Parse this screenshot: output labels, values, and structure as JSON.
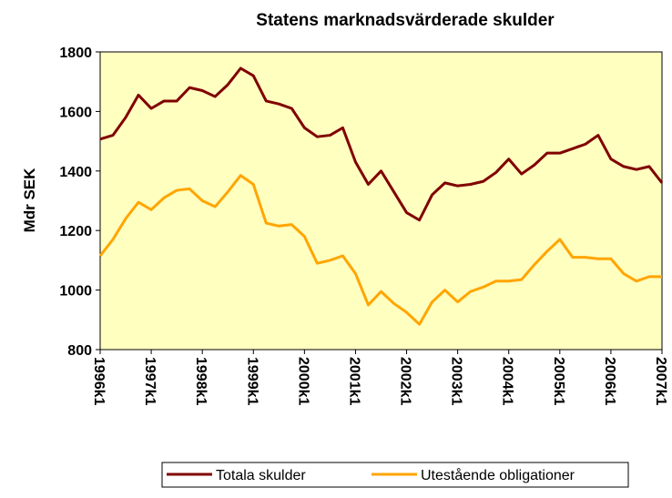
{
  "chart_data": {
    "type": "line",
    "title": "Statens marknadsvärderade skulder",
    "y_label": "Mdr SEK",
    "categories": [
      "1996k1",
      null,
      null,
      null,
      "1997k1",
      null,
      null,
      null,
      "1998k1",
      null,
      null,
      null,
      "1999k1",
      null,
      null,
      null,
      "2000k1",
      null,
      null,
      null,
      "2001k1",
      null,
      null,
      null,
      "2002k1",
      null,
      null,
      null,
      "2003k1",
      null,
      null,
      null,
      "2004k1",
      null,
      null,
      null,
      "2005k1",
      null,
      null,
      null,
      "2006k1",
      null,
      null,
      null,
      "2007k1"
    ],
    "series": [
      {
        "name": "Totala skulder",
        "color": "#800000",
        "values": [
          1507,
          1520,
          1580,
          1655,
          1610,
          1635,
          1635,
          1680,
          1670,
          1650,
          1690,
          1745,
          1720,
          1635,
          1625,
          1610,
          1545,
          1515,
          1520,
          1545,
          1430,
          1355,
          1400,
          1330,
          1260,
          1235,
          1320,
          1360,
          1350,
          1355,
          1365,
          1395,
          1440,
          1390,
          1420,
          1460,
          1460,
          1475,
          1490,
          1520,
          1440,
          1415,
          1405,
          1415,
          1360
        ]
      },
      {
        "name": "Utestående obligationer",
        "color": "#ffa500",
        "values": [
          1115,
          1170,
          1240,
          1295,
          1270,
          1310,
          1335,
          1340,
          1300,
          1280,
          1330,
          1385,
          1355,
          1225,
          1215,
          1220,
          1180,
          1090,
          1100,
          1115,
          1055,
          950,
          995,
          955,
          925,
          885,
          960,
          1000,
          960,
          995,
          1010,
          1030,
          1030,
          1035,
          1085,
          1130,
          1170,
          1110,
          1110,
          1105,
          1105,
          1055,
          1030,
          1045,
          1045
        ]
      }
    ],
    "ylim": [
      800,
      1800
    ],
    "yticks": [
      800,
      1000,
      1200,
      1400,
      1600,
      1800
    ],
    "plot_background": "#ffffc0"
  }
}
